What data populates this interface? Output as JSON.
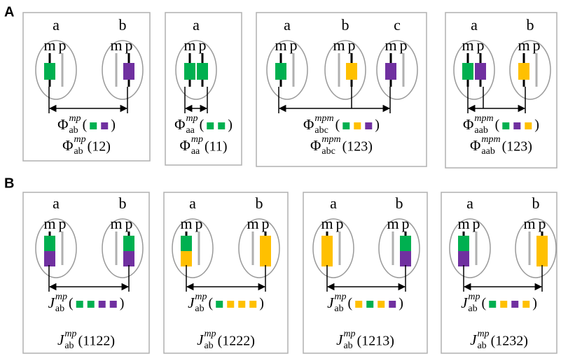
{
  "rows": [
    {
      "label": "A",
      "panels": [
        {
          "cells": [
            {
              "name": "a",
              "m": "m",
              "p": "p",
              "m_blocks": [
                "#00b050"
              ],
              "p_blocks": []
            },
            {
              "name": "b",
              "m": "m",
              "p": "p",
              "m_blocks": [],
              "p_blocks": [
                "#7030a0"
              ]
            }
          ],
          "link": {
            "symbol": "Φ",
            "sub": "ab",
            "sup": "mp",
            "open": "(",
            "squares": [
              "#00b050",
              "#7030a0"
            ],
            "close": ")"
          },
          "label": {
            "symbol": "Φ",
            "sub": "ab",
            "sup": "mp",
            "arg": "(12)"
          }
        },
        {
          "cells": [
            {
              "name": "a",
              "m": "m",
              "p": "p",
              "m_blocks": [
                "#00b050"
              ],
              "p_blocks": [
                "#00b050"
              ]
            }
          ],
          "link": {
            "symbol": "Φ",
            "sub": "aa",
            "sup": "mp",
            "open": "(",
            "squares": [
              "#00b050",
              "#00b050"
            ],
            "close": ")"
          },
          "label": {
            "symbol": "Φ",
            "sub": "aa",
            "sup": "mp",
            "arg": "(11)"
          }
        },
        {
          "cells": [
            {
              "name": "a",
              "m": "m",
              "p": "p",
              "m_blocks": [
                "#00b050"
              ],
              "p_blocks": []
            },
            {
              "name": "b",
              "m": "m",
              "p": "p",
              "m_blocks": [],
              "p_blocks": [
                "#ffc000"
              ]
            },
            {
              "name": "c",
              "m": "m",
              "p": "p",
              "m_blocks": [
                "#7030a0"
              ],
              "p_blocks": []
            }
          ],
          "link": {
            "symbol": "Φ",
            "sub": "abc",
            "sup": "mpm",
            "open": "(",
            "squares": [
              "#00b050",
              "#ffc000",
              "#7030a0"
            ],
            "close": ")"
          },
          "label": {
            "symbol": "Φ",
            "sub": "abc",
            "sup": "mpm",
            "arg": "(123)"
          }
        },
        {
          "cells": [
            {
              "name": "a",
              "m": "m",
              "p": "p",
              "m_blocks": [
                "#00b050"
              ],
              "p_blocks": [
                "#7030a0"
              ]
            },
            {
              "name": "b",
              "m": "m",
              "p": "p",
              "m_blocks": [
                "#ffc000"
              ],
              "p_blocks": []
            }
          ],
          "link": {
            "symbol": "Φ",
            "sub": "aab",
            "sup": "mpm",
            "open": "(",
            "squares": [
              "#00b050",
              "#7030a0",
              "#ffc000"
            ],
            "close": ")"
          },
          "label": {
            "symbol": "Φ",
            "sub": "aab",
            "sup": "mpm",
            "arg": "(123)"
          }
        }
      ]
    },
    {
      "label": "B",
      "panels": [
        {
          "cells": [
            {
              "name": "a",
              "m": "m",
              "p": "p",
              "m_blocks": [
                "#00b050",
                "#7030a0"
              ],
              "p_blocks": []
            },
            {
              "name": "b",
              "m": "m",
              "p": "p",
              "m_blocks": [],
              "p_blocks": [
                "#00b050",
                "#7030a0"
              ]
            }
          ],
          "link": {
            "symbol": "J",
            "sub": "ab",
            "sup": "mp",
            "open": "(",
            "squares": [
              "#00b050",
              "#00b050",
              "#7030a0",
              "#7030a0"
            ],
            "close": ")"
          },
          "label": {
            "symbol": "J",
            "sub": "ab",
            "sup": "mp",
            "arg": "(1122)"
          }
        },
        {
          "cells": [
            {
              "name": "a",
              "m": "m",
              "p": "p",
              "m_blocks": [
                "#00b050",
                "#ffc000"
              ],
              "p_blocks": []
            },
            {
              "name": "b",
              "m": "m",
              "p": "p",
              "m_blocks": [],
              "p_blocks": [
                "#ffc000"
              ]
            }
          ],
          "link": {
            "symbol": "J",
            "sub": "ab",
            "sup": "mp",
            "open": "(",
            "squares": [
              "#00b050",
              "#ffc000",
              "#ffc000",
              "#ffc000"
            ],
            "close": ")"
          },
          "label": {
            "symbol": "J",
            "sub": "ab",
            "sup": "mp",
            "arg": "(1222)"
          }
        },
        {
          "cells": [
            {
              "name": "a",
              "m": "m",
              "p": "p",
              "m_blocks": [
                "#ffc000"
              ],
              "p_blocks": []
            },
            {
              "name": "b",
              "m": "m",
              "p": "p",
              "m_blocks": [],
              "p_blocks": [
                "#00b050",
                "#7030a0"
              ]
            }
          ],
          "link": {
            "symbol": "J",
            "sub": "ab",
            "sup": "mp",
            "open": "(",
            "squares": [
              "#ffc000",
              "#00b050",
              "#ffc000",
              "#7030a0"
            ],
            "close": ")"
          },
          "label": {
            "symbol": "J",
            "sub": "ab",
            "sup": "mp",
            "arg": "(1213)"
          }
        },
        {
          "cells": [
            {
              "name": "a",
              "m": "m",
              "p": "p",
              "m_blocks": [
                "#00b050",
                "#7030a0"
              ],
              "p_blocks": []
            },
            {
              "name": "b",
              "m": "m",
              "p": "p",
              "m_blocks": [],
              "p_blocks": [
                "#ffc000"
              ]
            }
          ],
          "link": {
            "symbol": "J",
            "sub": "ab",
            "sup": "mp",
            "open": "(",
            "squares": [
              "#00b050",
              "#ffc000",
              "#7030a0",
              "#ffc000"
            ],
            "close": ")"
          },
          "label": {
            "symbol": "J",
            "sub": "ab",
            "sup": "mp",
            "arg": "(1232)"
          }
        }
      ]
    }
  ]
}
